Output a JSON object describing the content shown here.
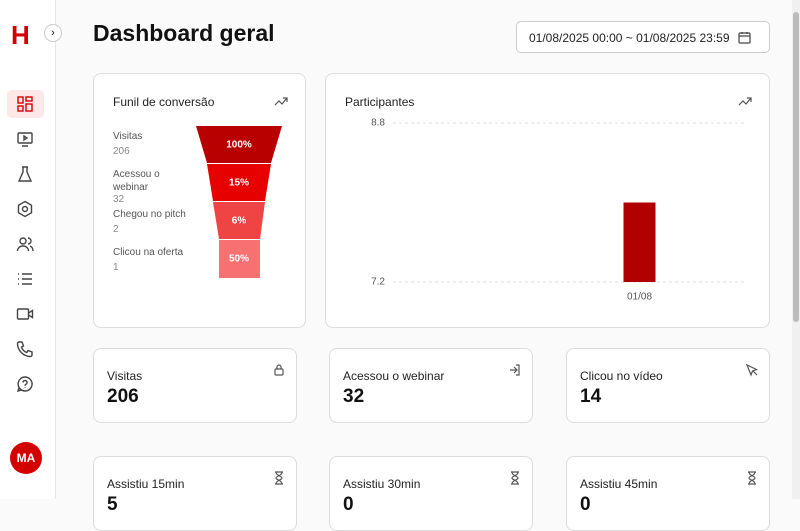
{
  "sidebar": {
    "logo": "H",
    "avatar": "MA"
  },
  "header": {
    "title": "Dashboard geral",
    "date_range": "01/08/2025 00:00 ~ 01/08/2025 23:59"
  },
  "funnel": {
    "title": "Funil de conversão",
    "stages": [
      {
        "label": "Visitas",
        "value": "206",
        "percent": "100%"
      },
      {
        "label": "Acessou o webinar",
        "value": "32",
        "percent": "15%"
      },
      {
        "label": "Chegou no pitch",
        "value": "2",
        "percent": "6%"
      },
      {
        "label": "Clicou na oferta",
        "value": "1",
        "percent": "50%"
      }
    ]
  },
  "chart_data": {
    "type": "bar",
    "title": "Participantes",
    "categories": [
      "01/08"
    ],
    "values": [
      8
    ],
    "color": "#b00000",
    "ylim": [
      7.2,
      8.8
    ],
    "yticks": [
      7.2,
      8.8
    ],
    "grid": true
  },
  "stats": [
    {
      "label": "Visitas",
      "value": "206"
    },
    {
      "label": "Acessou o webinar",
      "value": "32"
    },
    {
      "label": "Clicou no vídeo",
      "value": "14"
    },
    {
      "label": "Assistiu 15min",
      "value": "5"
    },
    {
      "label": "Assistiu 30min",
      "value": "0"
    },
    {
      "label": "Assistiu 45min",
      "value": "0"
    }
  ]
}
